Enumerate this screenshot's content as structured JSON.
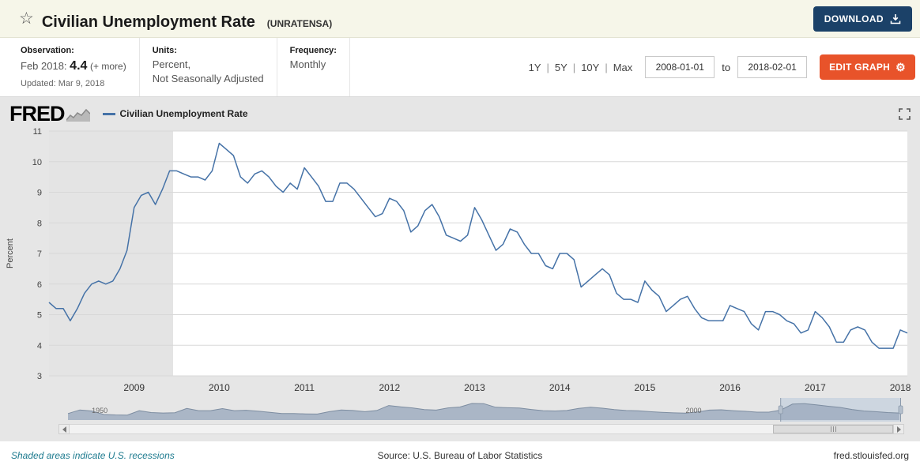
{
  "header": {
    "title": "Civilian Unemployment Rate",
    "series_id": "(UNRATENSA)",
    "download_label": "DOWNLOAD"
  },
  "info": {
    "observation_label": "Observation:",
    "observation_date": "Feb 2018:",
    "observation_value": "4.4",
    "observation_more": "(+ more)",
    "updated": "Updated: Mar 9, 2018",
    "units_label": "Units:",
    "units_line1": "Percent,",
    "units_line2": "Not Seasonally Adjusted",
    "frequency_label": "Frequency:",
    "frequency_value": "Monthly"
  },
  "range": {
    "options": [
      "1Y",
      "5Y",
      "10Y",
      "Max"
    ],
    "separator": "|",
    "start_date": "2008-01-01",
    "to_label": "to",
    "end_date": "2018-02-01",
    "edit_graph_label": "EDIT GRAPH"
  },
  "chart_header": {
    "logo": "FRED",
    "legend_label": "Civilian Unemployment Rate"
  },
  "footer": {
    "recessions_note": "Shaded areas indicate U.S. recessions",
    "source": "Source: U.S. Bureau of Labor Statistics",
    "site": "fred.stlouisfed.org"
  },
  "colors": {
    "line": "#4572a7",
    "download_button": "#1b4168",
    "edit_button": "#e8532a",
    "recession_band": "#e4e4e4",
    "chart_background": "#e6e6e6",
    "note_teal": "#1e7b8f"
  },
  "chart_data": {
    "type": "line",
    "title": "Civilian Unemployment Rate",
    "ylabel": "Percent",
    "ylim": [
      3,
      11
    ],
    "y_ticks": [
      3,
      4,
      5,
      6,
      7,
      8,
      9,
      10,
      11
    ],
    "x_ticks": [
      2009,
      2010,
      2011,
      2012,
      2013,
      2014,
      2015,
      2016,
      2017,
      2018
    ],
    "x_start_year": 2008.0,
    "x_end_year": 2018.083,
    "frequency": "Monthly",
    "grid": true,
    "line_color": "#4572a7",
    "recession_bands": [
      [
        2008.0,
        2009.458
      ]
    ],
    "values": [
      5.4,
      5.2,
      5.2,
      4.8,
      5.2,
      5.7,
      6.0,
      6.1,
      6.0,
      6.1,
      6.5,
      7.1,
      8.5,
      8.9,
      9.0,
      8.6,
      9.1,
      9.7,
      9.7,
      9.6,
      9.5,
      9.5,
      9.4,
      9.7,
      10.6,
      10.4,
      10.2,
      9.5,
      9.3,
      9.6,
      9.7,
      9.5,
      9.2,
      9.0,
      9.3,
      9.1,
      9.8,
      9.5,
      9.2,
      8.7,
      8.7,
      9.3,
      9.3,
      9.1,
      8.8,
      8.5,
      8.2,
      8.3,
      8.8,
      8.7,
      8.4,
      7.7,
      7.9,
      8.4,
      8.6,
      8.2,
      7.6,
      7.5,
      7.4,
      7.6,
      8.5,
      8.1,
      7.6,
      7.1,
      7.3,
      7.8,
      7.7,
      7.3,
      7.0,
      7.0,
      6.6,
      6.5,
      7.0,
      7.0,
      6.8,
      5.9,
      6.1,
      6.3,
      6.5,
      6.3,
      5.7,
      5.5,
      5.5,
      5.4,
      6.1,
      5.8,
      5.6,
      5.1,
      5.3,
      5.5,
      5.6,
      5.2,
      4.9,
      4.8,
      4.8,
      4.8,
      5.3,
      5.2,
      5.1,
      4.7,
      4.5,
      5.1,
      5.1,
      5.0,
      4.8,
      4.7,
      4.4,
      4.5,
      5.1,
      4.9,
      4.6,
      4.1,
      4.1,
      4.5,
      4.6,
      4.5,
      4.1,
      3.9,
      3.9,
      3.9,
      4.5,
      4.4
    ],
    "minimap": {
      "x_start": 1948,
      "x_end": 2018,
      "ymax": 12,
      "brush": [
        2008.0,
        2018.1
      ],
      "labels": [
        {
          "text": "1950",
          "year": 1950
        },
        {
          "text": "2000",
          "year": 2000
        }
      ],
      "annual_values": [
        3.8,
        5.9,
        5.3,
        3.3,
        3.0,
        2.9,
        5.5,
        4.4,
        4.1,
        4.3,
        6.8,
        5.5,
        5.5,
        6.7,
        5.5,
        5.7,
        5.2,
        4.5,
        3.8,
        3.8,
        3.6,
        3.5,
        4.9,
        5.9,
        5.6,
        4.9,
        5.6,
        8.5,
        7.7,
        7.1,
        6.1,
        5.8,
        7.1,
        7.6,
        9.7,
        9.6,
        7.5,
        7.2,
        7.0,
        6.2,
        5.5,
        5.3,
        5.6,
        6.8,
        7.5,
        6.9,
        6.1,
        5.6,
        5.4,
        4.9,
        4.5,
        4.2,
        4.0,
        4.7,
        5.8,
        6.0,
        5.5,
        5.1,
        4.6,
        4.6,
        5.8,
        9.3,
        9.6,
        8.9,
        8.1,
        7.4,
        6.2,
        5.3,
        4.9,
        4.4,
        4.1
      ]
    }
  }
}
